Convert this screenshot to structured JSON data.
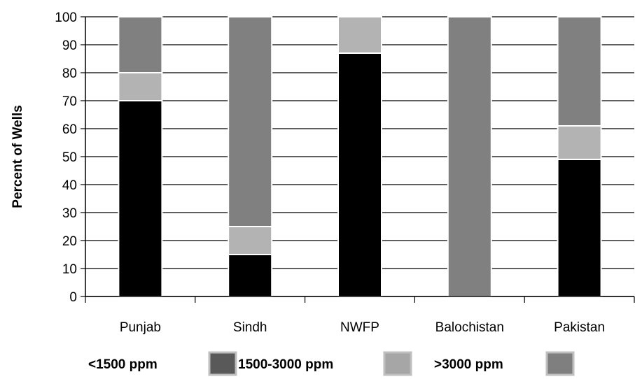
{
  "chart_data": {
    "type": "bar",
    "stacked": true,
    "title": "",
    "xlabel": "",
    "ylabel": "Percent of Wells",
    "ylim": [
      0,
      100
    ],
    "yticks": [
      0,
      10,
      20,
      30,
      40,
      50,
      60,
      70,
      80,
      90,
      100
    ],
    "grid": true,
    "legend_position": "bottom",
    "categories": [
      "Punjab",
      "Sindh",
      "NWFP",
      "Balochistan",
      "Pakistan"
    ],
    "series": [
      {
        "name": "<1500 ppm",
        "color": "#000000",
        "legend_color": "#595959",
        "values": [
          70,
          15,
          87,
          0,
          49
        ]
      },
      {
        "name": "1500-3000 ppm",
        "color": "#b3b3b3",
        "legend_color": "#a6a6a6",
        "values": [
          10,
          10,
          13,
          0,
          12
        ]
      },
      {
        "name": ">3000 ppm",
        "color": "#808080",
        "legend_color": "#7f7f7f",
        "values": [
          20,
          75,
          0,
          100,
          39
        ]
      }
    ]
  }
}
